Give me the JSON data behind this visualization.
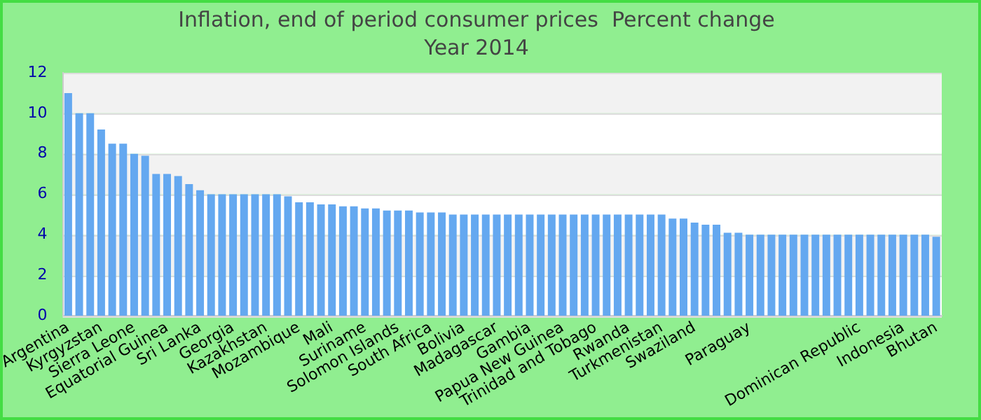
{
  "chart_data": {
    "type": "bar",
    "title": "Inflation, end of period consumer prices  Percent change",
    "subtitle": "Year 2014",
    "categories": [
      "Argentina",
      null,
      null,
      "Kyrgyzstan",
      null,
      null,
      "Sierra Leone",
      null,
      null,
      "Equatorial Guinea",
      null,
      null,
      "Sri Lanka",
      null,
      null,
      "Georgia",
      null,
      null,
      "Kazakhstan",
      null,
      null,
      "Mozambique",
      null,
      null,
      "Mali",
      null,
      null,
      "Suriname",
      null,
      null,
      "Solomon Islands",
      null,
      null,
      "South Africa",
      null,
      null,
      "Bolivia",
      null,
      null,
      "Madagascar",
      null,
      null,
      "Gambia",
      null,
      null,
      "Papua New Guinea",
      null,
      null,
      "Trinidad and Tobago",
      null,
      null,
      "Rwanda",
      null,
      null,
      "Turkmenistan",
      null,
      null,
      "Swaziland",
      null,
      null,
      null,
      null,
      "Paraguay",
      null,
      null,
      null,
      null,
      null,
      null,
      null,
      null,
      null,
      "Dominican Republic",
      null,
      null,
      null,
      "Indonesia",
      null,
      null,
      "Bhutan"
    ],
    "values": [
      11.0,
      10.0,
      10.0,
      9.2,
      8.5,
      8.5,
      8.0,
      7.9,
      7.0,
      7.0,
      6.9,
      6.5,
      6.2,
      6.0,
      6.0,
      6.0,
      6.0,
      6.0,
      6.0,
      6.0,
      5.9,
      5.6,
      5.6,
      5.5,
      5.5,
      5.4,
      5.4,
      5.3,
      5.3,
      5.2,
      5.2,
      5.2,
      5.1,
      5.1,
      5.1,
      5.0,
      5.0,
      5.0,
      5.0,
      5.0,
      5.0,
      5.0,
      5.0,
      5.0,
      5.0,
      5.0,
      5.0,
      5.0,
      5.0,
      5.0,
      5.0,
      5.0,
      5.0,
      5.0,
      5.0,
      4.8,
      4.8,
      4.6,
      4.5,
      4.5,
      4.1,
      4.1,
      4.0,
      4.0,
      4.0,
      4.0,
      4.0,
      4.0,
      4.0,
      4.0,
      4.0,
      4.0,
      4.0,
      4.0,
      4.0,
      4.0,
      4.0,
      4.0,
      4.0,
      3.9
    ],
    "color": "#64a8f0",
    "ylim": [
      0,
      12
    ],
    "yticks": [
      0,
      2,
      4,
      6,
      8,
      10,
      12
    ],
    "grid": "y"
  }
}
